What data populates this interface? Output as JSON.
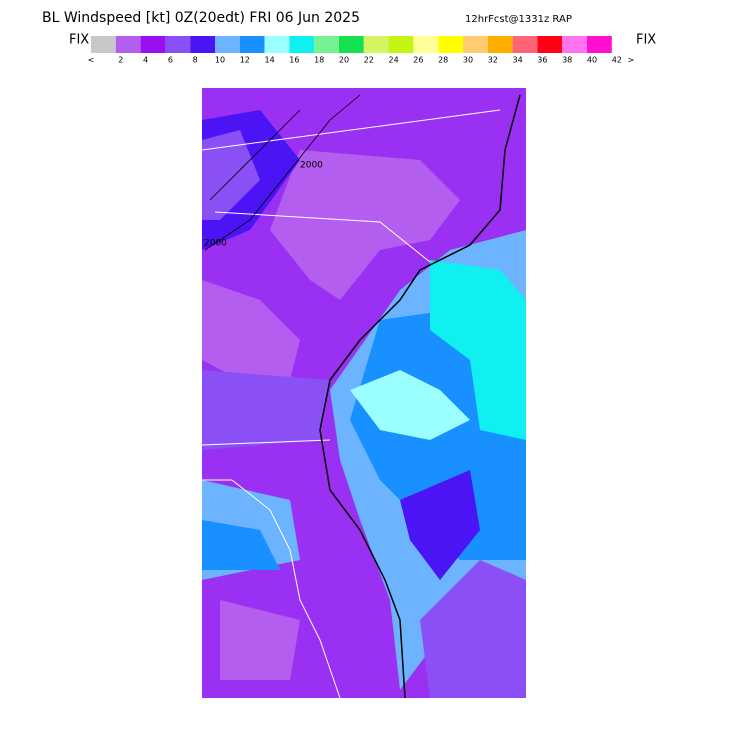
{
  "header": {
    "title": "BL Windspeed [kt] 0Z(20edt) FRI 06 Jun 2025",
    "subtitle": "12hrFcst@1331z RAP"
  },
  "legend": {
    "left": "FIX",
    "right": "FIX",
    "colors": [
      "#c8c8c8",
      "#b45ef0",
      "#9810f0",
      "#8a50f5",
      "#4a14f5",
      "#6cb4ff",
      "#1890ff",
      "#9cffff",
      "#10f0f0",
      "#74f294",
      "#14e050",
      "#d4f464",
      "#c4f414",
      "#ffff98",
      "#ffff00",
      "#ffcc70",
      "#ffae00",
      "#ff6476",
      "#ff0014",
      "#ff72f0",
      "#ff10d0"
    ],
    "labels": [
      "<",
      "2",
      "4",
      "6",
      "8",
      "10",
      "12",
      "14",
      "16",
      "18",
      "20",
      "22",
      "24",
      "26",
      "28",
      "30",
      "32",
      "34",
      "36",
      "38",
      "40",
      "42",
      ">"
    ]
  },
  "map": {
    "contour_labels": [
      "2000",
      "2000"
    ]
  }
}
